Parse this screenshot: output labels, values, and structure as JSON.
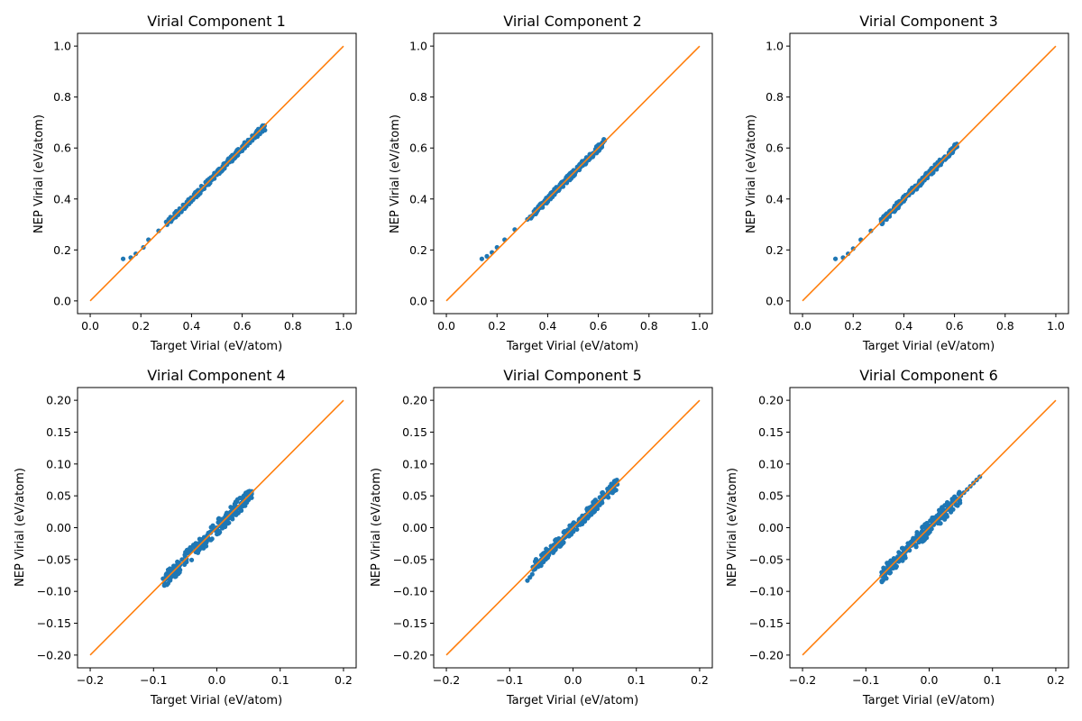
{
  "colors": {
    "scatter": "#1f77b4",
    "identity_line": "#ff7f0e",
    "axes": "#000000",
    "background": "#ffffff"
  },
  "chart_data": [
    {
      "type": "scatter",
      "title": "Virial Component 1",
      "xlabel": "Target Virial (eV/atom)",
      "ylabel": "NEP Virial (eV/atom)",
      "xlim": [
        -0.05,
        1.05
      ],
      "ylim": [
        -0.05,
        1.05
      ],
      "xticks": [
        0.0,
        0.2,
        0.4,
        0.6,
        0.8,
        1.0
      ],
      "yticks": [
        0.0,
        0.2,
        0.4,
        0.6,
        0.8,
        1.0
      ],
      "tick_labels": [
        "0.0",
        "0.2",
        "0.4",
        "0.6",
        "0.8",
        "1.0"
      ],
      "tick_decimals": 1,
      "grid": false,
      "identity_line": {
        "x": [
          0.0,
          1.0
        ],
        "y": [
          0.0,
          1.0
        ]
      },
      "points": [
        [
          0.13,
          0.165
        ],
        [
          0.16,
          0.17
        ],
        [
          0.18,
          0.185
        ],
        [
          0.21,
          0.21
        ],
        [
          0.23,
          0.24
        ],
        [
          0.27,
          0.275
        ],
        [
          0.3,
          0.31
        ],
        [
          0.31,
          0.32
        ],
        [
          0.33,
          0.33
        ],
        [
          0.34,
          0.345
        ],
        [
          0.36,
          0.36
        ],
        [
          0.38,
          0.375
        ],
        [
          0.39,
          0.38
        ],
        [
          0.4,
          0.395
        ],
        [
          0.41,
          0.41
        ],
        [
          0.42,
          0.415
        ],
        [
          0.43,
          0.425
        ],
        [
          0.44,
          0.435
        ],
        [
          0.45,
          0.44
        ],
        [
          0.46,
          0.455
        ],
        [
          0.47,
          0.46
        ],
        [
          0.48,
          0.475
        ],
        [
          0.49,
          0.48
        ],
        [
          0.5,
          0.495
        ],
        [
          0.51,
          0.5
        ],
        [
          0.52,
          0.515
        ],
        [
          0.53,
          0.52
        ],
        [
          0.54,
          0.535
        ],
        [
          0.55,
          0.545
        ],
        [
          0.56,
          0.55
        ],
        [
          0.57,
          0.56
        ],
        [
          0.58,
          0.57
        ],
        [
          0.59,
          0.585
        ],
        [
          0.6,
          0.59
        ],
        [
          0.61,
          0.6
        ],
        [
          0.62,
          0.61
        ],
        [
          0.63,
          0.62
        ],
        [
          0.64,
          0.63
        ],
        [
          0.65,
          0.64
        ],
        [
          0.66,
          0.645
        ],
        [
          0.67,
          0.655
        ],
        [
          0.68,
          0.665
        ],
        [
          0.69,
          0.67
        ]
      ],
      "band": {
        "x": [
          0.3,
          0.69
        ],
        "halfwidth": 0.012
      }
    },
    {
      "type": "scatter",
      "title": "Virial Component 2",
      "xlabel": "Target Virial (eV/atom)",
      "ylabel": "NEP Virial (eV/atom)",
      "xlim": [
        -0.05,
        1.05
      ],
      "ylim": [
        -0.05,
        1.05
      ],
      "xticks": [
        0.0,
        0.2,
        0.4,
        0.6,
        0.8,
        1.0
      ],
      "yticks": [
        0.0,
        0.2,
        0.4,
        0.6,
        0.8,
        1.0
      ],
      "tick_labels": [
        "0.0",
        "0.2",
        "0.4",
        "0.6",
        "0.8",
        "1.0"
      ],
      "tick_decimals": 1,
      "grid": false,
      "identity_line": {
        "x": [
          0.0,
          1.0
        ],
        "y": [
          0.0,
          1.0
        ]
      },
      "points": [
        [
          0.14,
          0.165
        ],
        [
          0.16,
          0.175
        ],
        [
          0.18,
          0.19
        ],
        [
          0.2,
          0.21
        ],
        [
          0.23,
          0.24
        ],
        [
          0.27,
          0.28
        ],
        [
          0.32,
          0.32
        ],
        [
          0.34,
          0.335
        ],
        [
          0.35,
          0.345
        ],
        [
          0.36,
          0.36
        ],
        [
          0.37,
          0.365
        ],
        [
          0.38,
          0.38
        ],
        [
          0.39,
          0.385
        ],
        [
          0.4,
          0.4
        ],
        [
          0.41,
          0.405
        ],
        [
          0.42,
          0.42
        ],
        [
          0.43,
          0.425
        ],
        [
          0.44,
          0.44
        ],
        [
          0.45,
          0.445
        ],
        [
          0.46,
          0.46
        ],
        [
          0.47,
          0.465
        ],
        [
          0.48,
          0.48
        ],
        [
          0.49,
          0.485
        ],
        [
          0.5,
          0.5
        ],
        [
          0.51,
          0.505
        ],
        [
          0.52,
          0.515
        ],
        [
          0.53,
          0.525
        ],
        [
          0.54,
          0.535
        ],
        [
          0.55,
          0.545
        ],
        [
          0.56,
          0.555
        ],
        [
          0.57,
          0.565
        ],
        [
          0.58,
          0.58
        ],
        [
          0.59,
          0.585
        ],
        [
          0.6,
          0.6
        ],
        [
          0.61,
          0.61
        ],
        [
          0.62,
          0.625
        ],
        [
          0.625,
          0.63
        ]
      ],
      "band": {
        "x": [
          0.33,
          0.625
        ],
        "halfwidth": 0.013
      }
    },
    {
      "type": "scatter",
      "title": "Virial Component 3",
      "xlabel": "Target Virial (eV/atom)",
      "ylabel": "NEP Virial (eV/atom)",
      "xlim": [
        -0.05,
        1.05
      ],
      "ylim": [
        -0.05,
        1.05
      ],
      "xticks": [
        0.0,
        0.2,
        0.4,
        0.6,
        0.8,
        1.0
      ],
      "yticks": [
        0.0,
        0.2,
        0.4,
        0.6,
        0.8,
        1.0
      ],
      "tick_labels": [
        "0.0",
        "0.2",
        "0.4",
        "0.6",
        "0.8",
        "1.0"
      ],
      "tick_decimals": 1,
      "grid": false,
      "identity_line": {
        "x": [
          0.0,
          1.0
        ],
        "y": [
          0.0,
          1.0
        ]
      },
      "points": [
        [
          0.13,
          0.165
        ],
        [
          0.16,
          0.17
        ],
        [
          0.18,
          0.185
        ],
        [
          0.2,
          0.205
        ],
        [
          0.23,
          0.24
        ],
        [
          0.27,
          0.275
        ],
        [
          0.31,
          0.32
        ],
        [
          0.33,
          0.33
        ],
        [
          0.34,
          0.335
        ],
        [
          0.35,
          0.35
        ],
        [
          0.36,
          0.36
        ],
        [
          0.37,
          0.37
        ],
        [
          0.38,
          0.38
        ],
        [
          0.39,
          0.385
        ],
        [
          0.4,
          0.4
        ],
        [
          0.41,
          0.41
        ],
        [
          0.42,
          0.415
        ],
        [
          0.43,
          0.43
        ],
        [
          0.44,
          0.44
        ],
        [
          0.45,
          0.445
        ],
        [
          0.46,
          0.46
        ],
        [
          0.47,
          0.47
        ],
        [
          0.48,
          0.48
        ],
        [
          0.49,
          0.485
        ],
        [
          0.5,
          0.5
        ],
        [
          0.51,
          0.505
        ],
        [
          0.52,
          0.515
        ],
        [
          0.53,
          0.525
        ],
        [
          0.54,
          0.535
        ],
        [
          0.55,
          0.545
        ],
        [
          0.56,
          0.555
        ],
        [
          0.57,
          0.565
        ],
        [
          0.58,
          0.575
        ],
        [
          0.59,
          0.59
        ],
        [
          0.6,
          0.6
        ],
        [
          0.61,
          0.605
        ]
      ],
      "band": {
        "x": [
          0.31,
          0.61
        ],
        "halfwidth": 0.013
      }
    },
    {
      "type": "scatter",
      "title": "Virial Component 4",
      "xlabel": "Target Virial (eV/atom)",
      "ylabel": "NEP Virial (eV/atom)",
      "xlim": [
        -0.22,
        0.22
      ],
      "ylim": [
        -0.22,
        0.22
      ],
      "xticks": [
        -0.2,
        -0.1,
        0.0,
        0.1,
        0.2
      ],
      "yticks": [
        -0.2,
        -0.15,
        -0.1,
        -0.05,
        0.0,
        0.05,
        0.1,
        0.15,
        0.2
      ],
      "xtick_labels": [
        "−0.2",
        "−0.1",
        "0.0",
        "0.1",
        "0.2"
      ],
      "ytick_labels": [
        "−0.20",
        "−0.15",
        "−0.10",
        "−0.05",
        "0.00",
        "0.05",
        "0.10",
        "0.15",
        "0.20"
      ],
      "grid": false,
      "identity_line": {
        "x": [
          -0.2,
          0.2
        ],
        "y": [
          -0.2,
          0.2
        ]
      },
      "points": [
        [
          -0.085,
          -0.08
        ],
        [
          -0.08,
          -0.075
        ],
        [
          -0.075,
          -0.07
        ],
        [
          -0.07,
          -0.065
        ],
        [
          -0.065,
          -0.06
        ],
        [
          -0.06,
          -0.055
        ],
        [
          -0.055,
          -0.05
        ],
        [
          -0.05,
          -0.045
        ],
        [
          -0.045,
          -0.04
        ],
        [
          -0.04,
          -0.035
        ],
        [
          -0.035,
          -0.03
        ],
        [
          -0.03,
          -0.025
        ],
        [
          -0.025,
          -0.02
        ],
        [
          -0.02,
          -0.015
        ],
        [
          -0.015,
          -0.012
        ],
        [
          -0.01,
          -0.008
        ],
        [
          -0.005,
          -0.003
        ],
        [
          0.0,
          0.0
        ],
        [
          0.005,
          0.005
        ],
        [
          0.01,
          0.01
        ],
        [
          0.015,
          0.013
        ],
        [
          0.02,
          0.018
        ],
        [
          0.025,
          0.023
        ],
        [
          0.03,
          0.028
        ],
        [
          0.035,
          0.033
        ],
        [
          0.04,
          0.038
        ],
        [
          0.045,
          0.043
        ],
        [
          0.05,
          0.048
        ],
        [
          0.055,
          0.053
        ],
        [
          0.055,
          0.057
        ]
      ],
      "band": {
        "x": [
          -0.085,
          0.055
        ],
        "halfwidth": 0.012
      }
    },
    {
      "type": "scatter",
      "title": "Virial Component 5",
      "xlabel": "Target Virial (eV/atom)",
      "ylabel": "NEP Virial (eV/atom)",
      "xlim": [
        -0.22,
        0.22
      ],
      "ylim": [
        -0.22,
        0.22
      ],
      "xticks": [
        -0.2,
        -0.1,
        0.0,
        0.1,
        0.2
      ],
      "yticks": [
        -0.2,
        -0.15,
        -0.1,
        -0.05,
        0.0,
        0.05,
        0.1,
        0.15,
        0.2
      ],
      "xtick_labels": [
        "−0.2",
        "−0.1",
        "0.0",
        "0.1",
        "0.2"
      ],
      "ytick_labels": [
        "−0.20",
        "−0.15",
        "−0.10",
        "−0.05",
        "0.00",
        "0.05",
        "0.10",
        "0.15",
        "0.20"
      ],
      "grid": false,
      "identity_line": {
        "x": [
          -0.2,
          0.2
        ],
        "y": [
          -0.2,
          0.2
        ]
      },
      "points": [
        [
          -0.072,
          -0.083
        ],
        [
          -0.068,
          -0.078
        ],
        [
          -0.06,
          -0.065
        ],
        [
          -0.055,
          -0.055
        ],
        [
          -0.05,
          -0.05
        ],
        [
          -0.045,
          -0.045
        ],
        [
          -0.04,
          -0.04
        ],
        [
          -0.035,
          -0.035
        ],
        [
          -0.03,
          -0.03
        ],
        [
          -0.025,
          -0.025
        ],
        [
          -0.02,
          -0.02
        ],
        [
          -0.015,
          -0.015
        ],
        [
          -0.01,
          -0.01
        ],
        [
          -0.005,
          -0.005
        ],
        [
          0.0,
          0.0
        ],
        [
          0.005,
          0.005
        ],
        [
          0.01,
          0.01
        ],
        [
          0.015,
          0.015
        ],
        [
          0.02,
          0.02
        ],
        [
          0.025,
          0.025
        ],
        [
          0.03,
          0.03
        ],
        [
          0.035,
          0.035
        ],
        [
          0.04,
          0.04
        ],
        [
          0.045,
          0.045
        ],
        [
          0.05,
          0.05
        ],
        [
          0.055,
          0.055
        ],
        [
          0.06,
          0.06
        ],
        [
          0.065,
          0.065
        ],
        [
          0.07,
          0.068
        ]
      ],
      "band": {
        "x": [
          -0.065,
          0.07
        ],
        "halfwidth": 0.009
      }
    },
    {
      "type": "scatter",
      "title": "Virial Component 6",
      "xlabel": "Target Virial (eV/atom)",
      "ylabel": "NEP Virial (eV/atom)",
      "xlim": [
        -0.22,
        0.22
      ],
      "ylim": [
        -0.22,
        0.22
      ],
      "xticks": [
        -0.2,
        -0.1,
        0.0,
        0.1,
        0.2
      ],
      "yticks": [
        -0.2,
        -0.15,
        -0.1,
        -0.05,
        0.0,
        0.05,
        0.1,
        0.15,
        0.2
      ],
      "xtick_labels": [
        "−0.2",
        "−0.1",
        "0.0",
        "0.1",
        "0.2"
      ],
      "ytick_labels": [
        "−0.20",
        "−0.15",
        "−0.10",
        "−0.05",
        "0.00",
        "0.05",
        "0.10",
        "0.15",
        "0.20"
      ],
      "grid": false,
      "identity_line": {
        "x": [
          -0.2,
          0.2
        ],
        "y": [
          -0.2,
          0.2
        ]
      },
      "points": [
        [
          -0.075,
          -0.07
        ],
        [
          -0.07,
          -0.068
        ],
        [
          -0.065,
          -0.063
        ],
        [
          -0.06,
          -0.058
        ],
        [
          -0.055,
          -0.053
        ],
        [
          -0.05,
          -0.048
        ],
        [
          -0.045,
          -0.043
        ],
        [
          -0.04,
          -0.038
        ],
        [
          -0.035,
          -0.033
        ],
        [
          -0.03,
          -0.028
        ],
        [
          -0.025,
          -0.023
        ],
        [
          -0.02,
          -0.018
        ],
        [
          -0.015,
          -0.013
        ],
        [
          -0.01,
          -0.008
        ],
        [
          -0.005,
          -0.003
        ],
        [
          0.0,
          0.0
        ],
        [
          0.005,
          0.005
        ],
        [
          0.01,
          0.01
        ],
        [
          0.015,
          0.015
        ],
        [
          0.02,
          0.02
        ],
        [
          0.025,
          0.025
        ],
        [
          0.03,
          0.03
        ],
        [
          0.035,
          0.035
        ],
        [
          0.04,
          0.04
        ],
        [
          0.045,
          0.045
        ],
        [
          0.05,
          0.05
        ],
        [
          0.055,
          0.055
        ],
        [
          0.06,
          0.06
        ],
        [
          0.065,
          0.065
        ],
        [
          0.07,
          0.07
        ],
        [
          0.075,
          0.075
        ],
        [
          0.08,
          0.08
        ]
      ],
      "band": {
        "x": [
          -0.075,
          0.05
        ],
        "halfwidth": 0.012
      }
    }
  ]
}
